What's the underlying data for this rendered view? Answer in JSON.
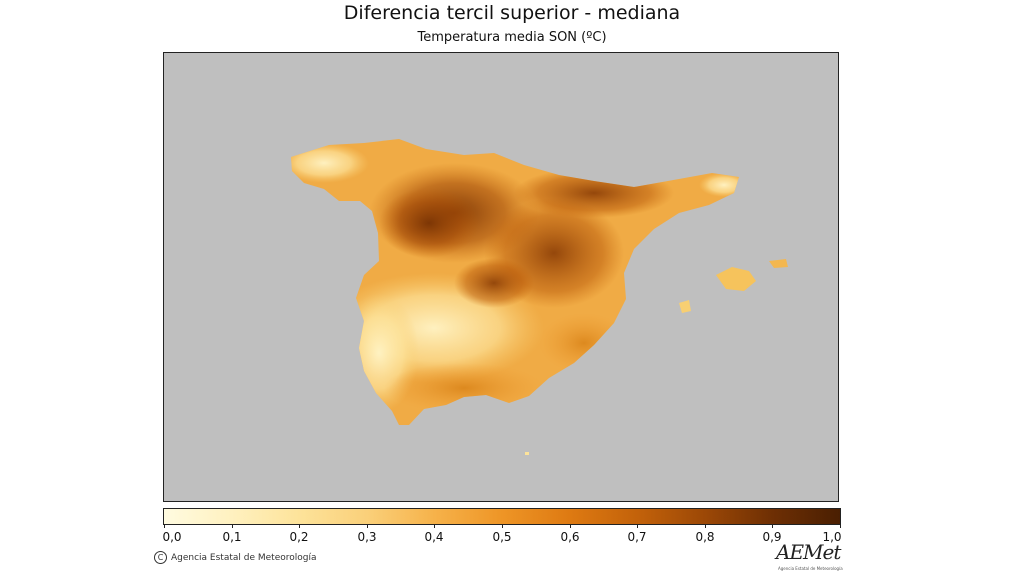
{
  "title": "Diferencia tercil superior - mediana",
  "subtitle": "Temperatura media SON (ºC)",
  "colorbar": {
    "ticks": [
      "0,0",
      "0,1",
      "0,2",
      "0,3",
      "0,4",
      "0,5",
      "0,6",
      "0,7",
      "0,8",
      "0,9",
      "1,0"
    ],
    "min": 0.0,
    "max": 1.0,
    "colors": [
      "#fffbe0",
      "#ffe9a8",
      "#fcd178",
      "#f6b24a",
      "#ee9526",
      "#de7a12",
      "#c3620a",
      "#9c4806",
      "#6e2f04",
      "#4a1f02"
    ]
  },
  "map_colors": {
    "background": "#bfbfbf",
    "land_base": "#f3b04c"
  },
  "credit": {
    "icon": "copyright-icon",
    "text": "Agencia Estatal de Meteorología"
  },
  "logo": {
    "text": "AEMet",
    "subtext": "Agencia Estatal de Meteorología"
  }
}
